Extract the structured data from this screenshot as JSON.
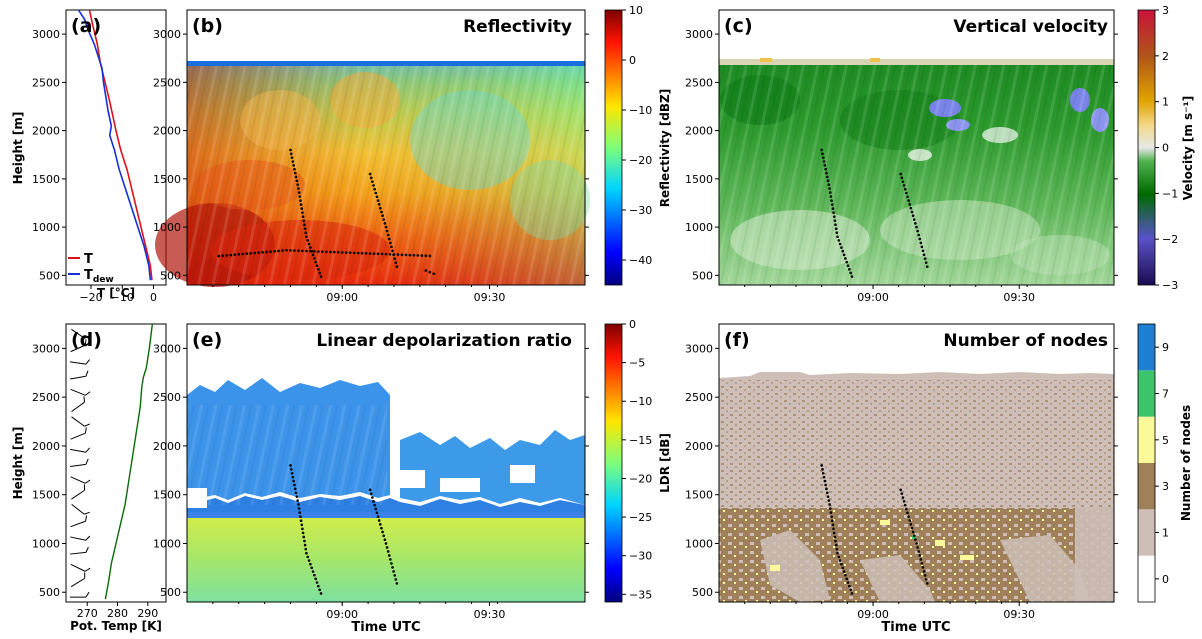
{
  "colors": {
    "temperature": "#e0101a",
    "dewpoint": "#1430d8",
    "potential_temperature": "#0a6a0a",
    "nodes_0": "#ffffff",
    "nodes_1": "#cdbfb8",
    "nodes_3": "#a07f5b",
    "nodes_5": "#fafa9a",
    "nodes_7": "#3cc46a",
    "nodes_9": "#1f7fd2"
  },
  "chart_data": [
    {
      "panel": "(a)",
      "type": "line",
      "panel_label": "(a)",
      "xlabel": "T [°C]",
      "ylabel": "Height [m]",
      "xlim": [
        -28,
        4
      ],
      "ylim": [
        400,
        3250
      ],
      "xticks": [
        -20,
        -10,
        0
      ],
      "xtick_labels": [
        "−20",
        "−10",
        "0"
      ],
      "yticks": [
        500,
        1000,
        1500,
        2000,
        2500,
        3000
      ],
      "legend": "lower-left",
      "series": [
        {
          "name": "T",
          "color": "#e0101a",
          "points": [
            [
              -0.5,
              450
            ],
            [
              -1,
              600
            ],
            [
              -2.5,
              800
            ],
            [
              -4,
              1000
            ],
            [
              -5.5,
              1200
            ],
            [
              -7,
              1400
            ],
            [
              -8.5,
              1600
            ],
            [
              -10.5,
              1800
            ],
            [
              -12,
              2000
            ],
            [
              -13,
              2150
            ],
            [
              -14,
              2300
            ],
            [
              -15.5,
              2500
            ],
            [
              -17,
              2700
            ],
            [
              -18,
              2900
            ],
            [
              -19.5,
              3100
            ],
            [
              -20.5,
              3250
            ]
          ]
        },
        {
          "name": "T_dew",
          "color": "#1430d8",
          "points": [
            [
              -1,
              450
            ],
            [
              -1.5,
              600
            ],
            [
              -3,
              800
            ],
            [
              -5,
              1000
            ],
            [
              -7,
              1200
            ],
            [
              -9,
              1400
            ],
            [
              -11,
              1600
            ],
            [
              -12.5,
              1800
            ],
            [
              -14,
              1950
            ],
            [
              -13.5,
              2050
            ],
            [
              -14.5,
              2200
            ],
            [
              -16,
              2500
            ],
            [
              -16.5,
              2650
            ],
            [
              -19,
              2900
            ],
            [
              -21,
              3050
            ],
            [
              -22,
              3150
            ],
            [
              -24,
              3250
            ]
          ]
        }
      ]
    },
    {
      "panel": "(b)",
      "type": "heatmap",
      "panel_label": "(b)",
      "title": "Reflectivity",
      "xlabel": "",
      "ylabel": "",
      "xticks": [
        "09:00",
        "09:30"
      ],
      "yticks": [
        500,
        1000,
        1500,
        2000,
        2500,
        3000
      ],
      "colorbar_label": "Reflectivity [dBZ]",
      "colorbar_ticks": [
        10,
        0,
        -10,
        -20,
        -30,
        -40
      ],
      "colorbar_range": [
        -45,
        10
      ],
      "colormap": "jet",
      "echo_top_m": 2700,
      "description_note": ""
    },
    {
      "panel": "(c)",
      "type": "heatmap",
      "panel_label": "(c)",
      "title": "Vertical velocity",
      "xlabel": "",
      "ylabel": "",
      "xticks": [
        "09:00",
        "09:30"
      ],
      "yticks": [
        500,
        1000,
        1500,
        2000,
        2500,
        3000
      ],
      "colorbar_label": "Velocity [m s⁻¹]",
      "colorbar_ticks": [
        3,
        2,
        1,
        0,
        -1,
        -2,
        -3
      ],
      "colorbar_range": [
        -3,
        3
      ],
      "echo_top_m": 2700
    },
    {
      "panel": "(d)",
      "type": "line",
      "panel_label": "(d)",
      "xlabel": "Pot. Temp [K]",
      "ylabel": "Height [m]",
      "xlim": [
        263,
        296
      ],
      "ylim": [
        400,
        3250
      ],
      "xticks": [
        270,
        280,
        290
      ],
      "yticks": [
        500,
        1000,
        1500,
        2000,
        2500,
        3000
      ],
      "series": [
        {
          "name": "",
          "color": "#0a6a0a",
          "points": [
            [
              276,
              430
            ],
            [
              277,
              600
            ],
            [
              278,
              800
            ],
            [
              279.5,
              1000
            ],
            [
              281,
              1200
            ],
            [
              282.5,
              1400
            ],
            [
              283.5,
              1600
            ],
            [
              284.5,
              1800
            ],
            [
              285.5,
              2000
            ],
            [
              286.5,
              2200
            ],
            [
              287.5,
              2400
            ],
            [
              288,
              2600
            ],
            [
              288.5,
              2700
            ],
            [
              289.5,
              2800
            ],
            [
              290.5,
              3000
            ],
            [
              291.5,
              3250
            ]
          ]
        }
      ],
      "wind_barb_heights": [
        450,
        600,
        750,
        900,
        1050,
        1200,
        1350,
        1500,
        1650,
        1800,
        1950,
        2100,
        2250,
        2400,
        2550,
        2700,
        2850,
        3000,
        3150
      ]
    },
    {
      "panel": "(e)",
      "type": "heatmap",
      "panel_label": "(e)",
      "title": "Linear depolarization ratio",
      "xlabel": "Time UTC",
      "ylabel": "",
      "xticks": [
        "09:00",
        "09:30"
      ],
      "yticks": [
        500,
        1000,
        1500,
        2000,
        2500,
        3000
      ],
      "colorbar_label": "LDR [dB]",
      "colorbar_ticks": [
        0,
        -5,
        -10,
        -15,
        -20,
        -25,
        -30,
        -35
      ],
      "colorbar_range": [
        -36,
        0
      ],
      "colormap": "jet",
      "melting_layer_m": 1300
    },
    {
      "panel": "(f)",
      "type": "heatmap",
      "panel_label": "(f)",
      "title": "Number of nodes",
      "xlabel": "Time UTC",
      "ylabel": "",
      "xticks": [
        "09:00",
        "09:30"
      ],
      "yticks": [
        500,
        1000,
        1500,
        2000,
        2500,
        3000
      ],
      "colorbar_label": "Number of nodes",
      "colorbar_ticks": [
        9,
        7,
        5,
        3,
        1,
        0
      ],
      "echo_top_m": 2700
    }
  ]
}
